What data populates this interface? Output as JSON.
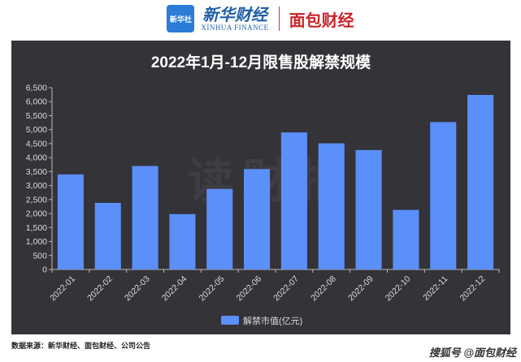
{
  "header": {
    "logo_text": "新华社",
    "brand_cn": "新华财经",
    "brand_en": "XINHUA FINANCE",
    "brand2": "面包财经"
  },
  "chart_data": {
    "type": "bar",
    "title": "2022年1月-12月限售股解禁规模",
    "categories": [
      "2022-01",
      "2022-02",
      "2022-03",
      "2022-04",
      "2022-05",
      "2022-06",
      "2022-07",
      "2022-08",
      "2022-09",
      "2022-10",
      "2022-11",
      "2022-12"
    ],
    "series": [
      {
        "name": "解禁市值(亿元)",
        "values": [
          3400,
          2380,
          3700,
          1980,
          2880,
          3590,
          4900,
          4510,
          4270,
          2130,
          5270,
          6240
        ]
      }
    ],
    "yticks": [
      "0",
      "500",
      "1,000",
      "1,500",
      "2,000",
      "2,500",
      "3,000",
      "3,500",
      "4,000",
      "4,500",
      "5,000",
      "5,500",
      "6,000",
      "6,500"
    ],
    "ylim": [
      0,
      6500
    ],
    "bar_color": "#5b8ff9",
    "legend_position": "bottom-center",
    "watermark": "读财报"
  },
  "footer": {
    "source": "数据来源：新华财经、面包财经、公司公告",
    "credit": "搜狐号 @面包财经"
  }
}
